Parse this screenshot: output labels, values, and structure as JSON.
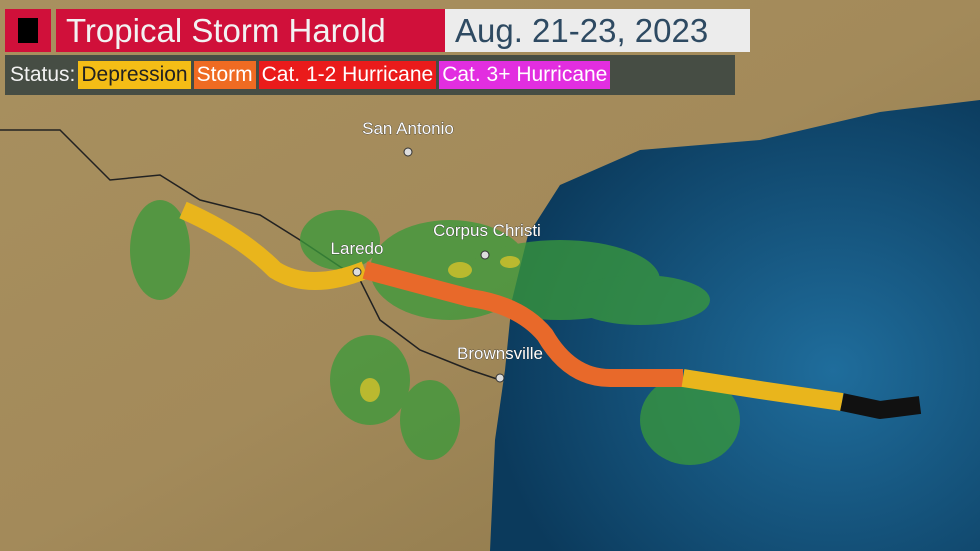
{
  "header": {
    "title": "Tropical Storm Harold",
    "dates": "Aug. 21-23, 2023"
  },
  "legend": {
    "label": "Status:",
    "items": [
      {
        "label": "Depression",
        "color": "#f4bd16",
        "text": "#222"
      },
      {
        "label": "Storm",
        "color": "#ef6b22",
        "text": "#fff"
      },
      {
        "label": "Cat. 1-2 Hurricane",
        "color": "#ea1b1b",
        "text": "#fff"
      },
      {
        "label": "Cat. 3+ Hurricane",
        "color": "#e22ee0",
        "text": "#fff"
      }
    ]
  },
  "cities": [
    {
      "name": "San Antonio"
    },
    {
      "name": "Laredo"
    },
    {
      "name": "Corpus Christi"
    },
    {
      "name": "Brownsville"
    }
  ],
  "track_colors": {
    "depression": "#e9b51c",
    "storm": "#e8692a",
    "remnant": "#111111"
  }
}
